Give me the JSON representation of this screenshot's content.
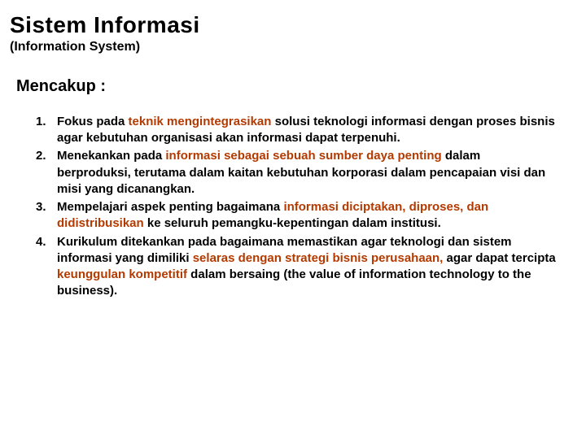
{
  "colors": {
    "text": "#000000",
    "highlight": "#b33a00",
    "background": "#ffffff"
  },
  "title": "Sistem Informasi",
  "subtitle": "(Information System)",
  "section_heading": "Mencakup :",
  "items": [
    {
      "num": "1.",
      "pre": "Fokus pada ",
      "hl": "teknik mengintegrasikan",
      "post": " solusi teknologi informasi dengan proses bisnis agar kebutuhan organisasi akan informasi dapat terpenuhi."
    },
    {
      "num": "2.",
      "pre": "Menekankan pada ",
      "hl": "informasi sebagai sebuah sumber daya penting",
      "post": " dalam berproduksi, terutama dalam kaitan kebutuhan korporasi dalam pencapaian visi dan misi yang dicanangkan."
    },
    {
      "num": "3.",
      "pre": "Mempelajari aspek penting bagaimana ",
      "hl": "informasi diciptakan, diproses, dan didistribusikan",
      "post": " ke seluruh pemangku-kepentingan dalam institusi."
    },
    {
      "num": "4.",
      "pre": "Kurikulum ditekankan pada bagaimana memastikan agar teknologi dan sistem informasi yang dimiliki ",
      "hl": "selaras dengan strategi bisnis perusahaan,",
      "mid": " agar dapat tercipta ",
      "hl2": "keunggulan kompetitif",
      "post": " dalam bersaing (the value of information technology to the business)."
    }
  ]
}
